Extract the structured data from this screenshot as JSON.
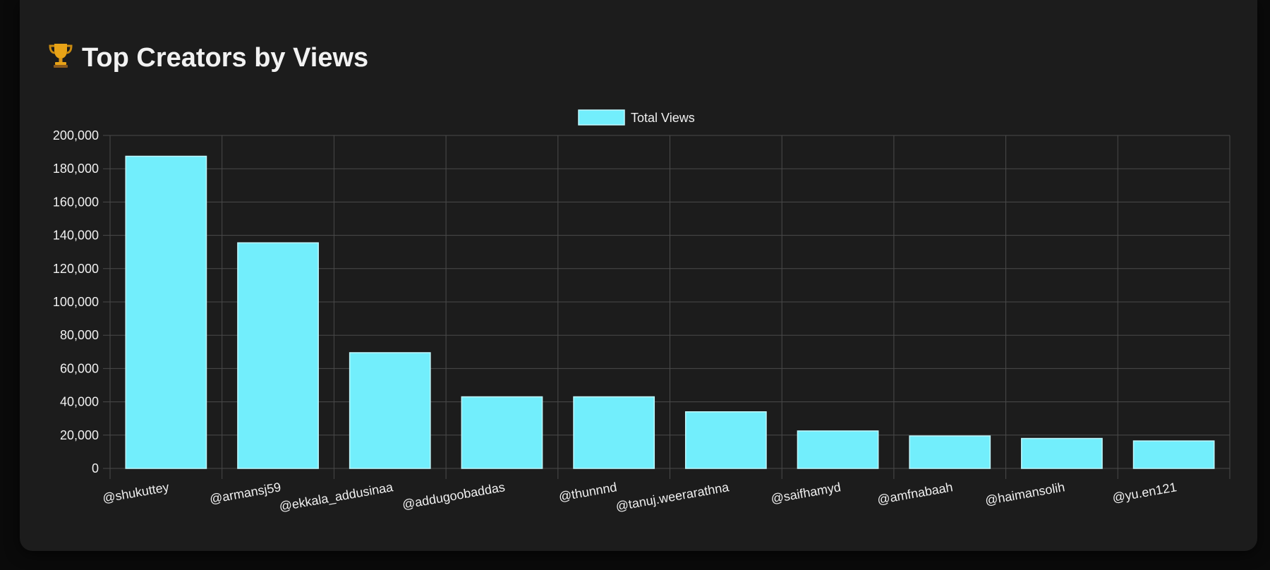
{
  "card": {
    "title": "Top Creators by Views",
    "title_icon": "trophy-icon"
  },
  "colors": {
    "bar_fill": "#72eefc",
    "bar_border": "#bff7fd",
    "grid": "#4a4a4a",
    "text": "#f0f0f0"
  },
  "chart_data": {
    "type": "bar",
    "categories": [
      "@shukuttey",
      "@armansj59",
      "@ekkala_addusinaa",
      "@addugoobaddas",
      "@thunnnd",
      "@tanuj.weerarathna",
      "@saifhamyd",
      "@amfnabaah",
      "@haimansolih",
      "@yu.en121"
    ],
    "series": [
      {
        "name": "Total Views",
        "values": [
          187500,
          135500,
          69500,
          43000,
          43000,
          34000,
          22500,
          19500,
          18000,
          16500
        ]
      }
    ],
    "ylim": [
      0,
      200000
    ],
    "yticks": [
      "0",
      "20,000",
      "40,000",
      "60,000",
      "80,000",
      "100,000",
      "120,000",
      "140,000",
      "160,000",
      "180,000",
      "200,000"
    ],
    "grid": true,
    "legend_position": "top-center",
    "xlabel": "",
    "ylabel": ""
  }
}
